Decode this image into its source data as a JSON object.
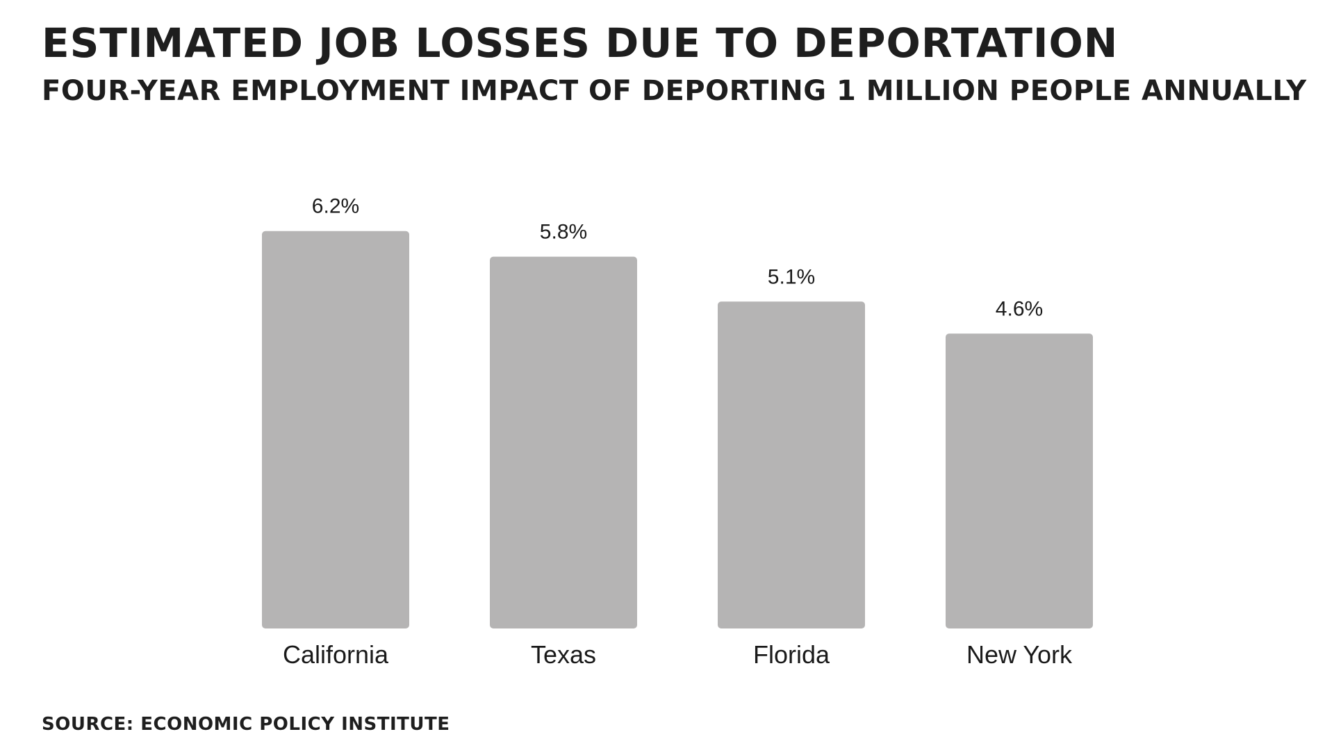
{
  "chart_data": {
    "type": "bar",
    "title": "ESTIMATED JOB LOSSES DUE TO DEPORTATION",
    "subtitle": "FOUR-YEAR EMPLOYMENT IMPACT OF DEPORTING 1 MILLION PEOPLE ANNUALLY",
    "categories": [
      "California",
      "Texas",
      "Florida",
      "New York"
    ],
    "values": [
      6.2,
      5.8,
      5.1,
      4.6
    ],
    "value_labels": [
      "6.2%",
      "5.8%",
      "5.1%",
      "4.6%"
    ],
    "xlabel": "",
    "ylabel": "",
    "grid": false,
    "bar_color": "#b5b4b4",
    "source": "SOURCE: ECONOMIC POLICY INSTITUTE"
  }
}
